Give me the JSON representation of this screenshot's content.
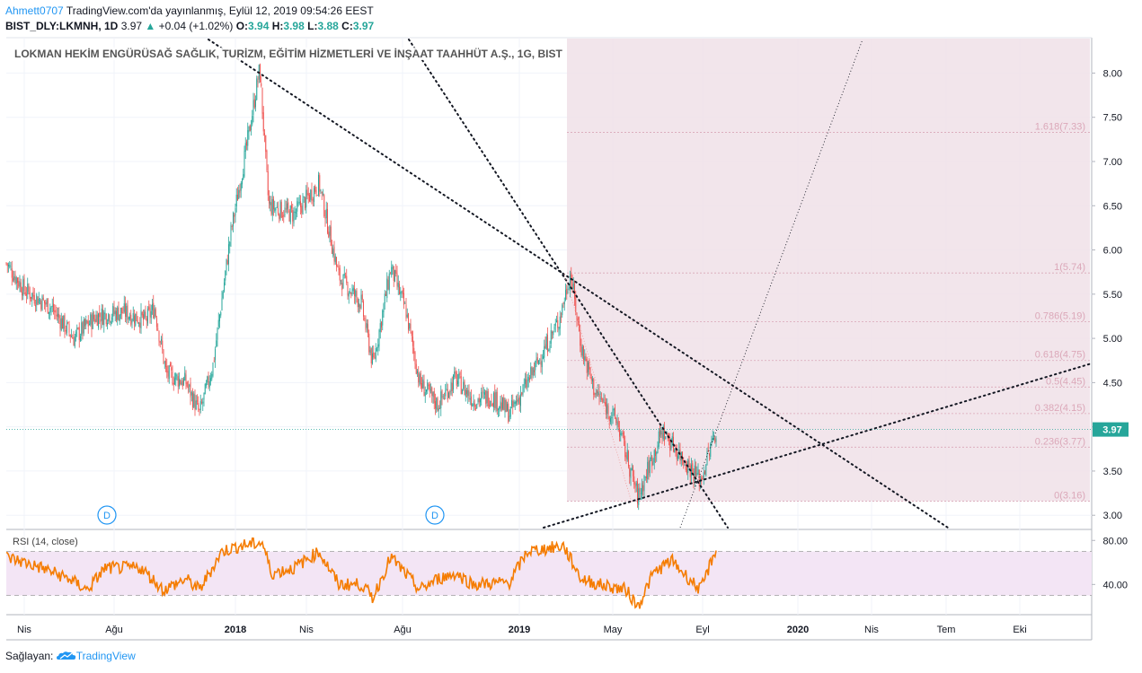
{
  "header": {
    "author": "Ahmett0707",
    "published": "TradingView.com'da yayınlanmış, Eylül 12, 2019 09:54:26 EEST",
    "symbol": "BIST_DLY:LKMNH, 1D",
    "last": "3.97",
    "change": "+0.04 (+1.02%)",
    "o_label": "O:",
    "o": "3.94",
    "h_label": "H:",
    "h": "3.98",
    "l_label": "L:",
    "l": "3.88",
    "c_label": "C:",
    "c": "3.97"
  },
  "title": "LOKMAN HEKİM ENGÜRÜSAĞ SAĞLIK, TURİZM, EĞİTİM HİZMETLERİ VE İNŞAAT TAAHHÜT A.Ş., 1G, BIST",
  "rsi_label": "RSI (14, close)",
  "footer": {
    "prefix": "Sağlayan:",
    "brand": "TradingView"
  },
  "colors": {
    "up": "#26a69a",
    "down": "#ef5350",
    "rsi": "#f57c00",
    "fib_zone": "#f0e0e8",
    "rsi_band": "#f3e5f5",
    "price_tag": "#26a69a"
  },
  "chart_data": [
    {
      "type": "candlestick",
      "ylim": [
        2.85,
        8.4
      ],
      "y_ticks": [
        "3.00",
        "3.50",
        "4.00",
        "4.50",
        "5.00",
        "5.50",
        "6.00",
        "6.50",
        "7.00",
        "7.50",
        "8.00"
      ],
      "x_ticks": [
        "Nis",
        "Ağu",
        "2018",
        "Nis",
        "Ağu",
        "2019",
        "May",
        "Eyl",
        "2020",
        "Nis",
        "Tem",
        "Eki"
      ],
      "last_price": 3.97,
      "last_price_label": "3.97",
      "dividend_markers": [
        "D",
        "D"
      ],
      "trend_keypoints": [
        {
          "x": 0,
          "y": 5.85
        },
        {
          "x": 20,
          "y": 5.55
        },
        {
          "x": 50,
          "y": 5.35
        },
        {
          "x": 75,
          "y": 5.0
        },
        {
          "x": 100,
          "y": 5.25
        },
        {
          "x": 130,
          "y": 5.3
        },
        {
          "x": 155,
          "y": 5.2
        },
        {
          "x": 165,
          "y": 5.35
        },
        {
          "x": 178,
          "y": 4.6
        },
        {
          "x": 200,
          "y": 4.5
        },
        {
          "x": 215,
          "y": 4.15
        },
        {
          "x": 230,
          "y": 4.7
        },
        {
          "x": 250,
          "y": 6.2
        },
        {
          "x": 268,
          "y": 7.2
        },
        {
          "x": 282,
          "y": 8.05
        },
        {
          "x": 292,
          "y": 6.5
        },
        {
          "x": 320,
          "y": 6.4
        },
        {
          "x": 348,
          "y": 6.75
        },
        {
          "x": 370,
          "y": 5.7
        },
        {
          "x": 395,
          "y": 5.4
        },
        {
          "x": 408,
          "y": 4.7
        },
        {
          "x": 428,
          "y": 5.8
        },
        {
          "x": 445,
          "y": 5.3
        },
        {
          "x": 460,
          "y": 4.5
        },
        {
          "x": 480,
          "y": 4.25
        },
        {
          "x": 500,
          "y": 4.55
        },
        {
          "x": 520,
          "y": 4.3
        },
        {
          "x": 540,
          "y": 4.35
        },
        {
          "x": 560,
          "y": 4.15
        },
        {
          "x": 580,
          "y": 4.5
        },
        {
          "x": 600,
          "y": 4.9
        },
        {
          "x": 615,
          "y": 5.2
        },
        {
          "x": 628,
          "y": 5.74
        },
        {
          "x": 640,
          "y": 4.9
        },
        {
          "x": 655,
          "y": 4.4
        },
        {
          "x": 680,
          "y": 4.05
        },
        {
          "x": 703,
          "y": 3.2
        },
        {
          "x": 715,
          "y": 3.55
        },
        {
          "x": 730,
          "y": 3.95
        },
        {
          "x": 745,
          "y": 3.75
        },
        {
          "x": 760,
          "y": 3.55
        },
        {
          "x": 773,
          "y": 3.4
        },
        {
          "x": 790,
          "y": 3.97
        }
      ],
      "fibonacci": [
        {
          "level": "1.618",
          "value": 7.33,
          "label": "1.618(7.33)"
        },
        {
          "level": "1",
          "value": 5.74,
          "label": "1(5.74)"
        },
        {
          "level": "0.786",
          "value": 5.19,
          "label": "0.786(5.19)"
        },
        {
          "level": "0.618",
          "value": 4.75,
          "label": "0.618(4.75)"
        },
        {
          "level": "0.5",
          "value": 4.45,
          "label": "0.5(4.45)"
        },
        {
          "level": "0.382",
          "value": 4.15,
          "label": "0.382(4.15)"
        },
        {
          "level": "0.236",
          "value": 3.77,
          "label": "0.236(3.77)"
        },
        {
          "level": "0",
          "value": 3.16,
          "label": "0(3.16)"
        }
      ]
    },
    {
      "type": "line",
      "name": "RSI (14, close)",
      "ylim": [
        15,
        90
      ],
      "y_ticks": [
        "40.00",
        "80.00"
      ],
      "upper_band": 70,
      "lower_band": 30,
      "rsi_keypoints": [
        {
          "x": 0,
          "y": 65
        },
        {
          "x": 40,
          "y": 55
        },
        {
          "x": 70,
          "y": 45
        },
        {
          "x": 90,
          "y": 35
        },
        {
          "x": 110,
          "y": 55
        },
        {
          "x": 150,
          "y": 55
        },
        {
          "x": 175,
          "y": 35
        },
        {
          "x": 200,
          "y": 45
        },
        {
          "x": 215,
          "y": 35
        },
        {
          "x": 240,
          "y": 70
        },
        {
          "x": 260,
          "y": 75
        },
        {
          "x": 285,
          "y": 78
        },
        {
          "x": 295,
          "y": 50
        },
        {
          "x": 320,
          "y": 55
        },
        {
          "x": 348,
          "y": 70
        },
        {
          "x": 370,
          "y": 40
        },
        {
          "x": 395,
          "y": 40
        },
        {
          "x": 408,
          "y": 28
        },
        {
          "x": 428,
          "y": 65
        },
        {
          "x": 460,
          "y": 35
        },
        {
          "x": 480,
          "y": 45
        },
        {
          "x": 500,
          "y": 50
        },
        {
          "x": 520,
          "y": 40
        },
        {
          "x": 560,
          "y": 42
        },
        {
          "x": 580,
          "y": 70
        },
        {
          "x": 620,
          "y": 75
        },
        {
          "x": 640,
          "y": 45
        },
        {
          "x": 660,
          "y": 40
        },
        {
          "x": 690,
          "y": 35
        },
        {
          "x": 703,
          "y": 20
        },
        {
          "x": 720,
          "y": 50
        },
        {
          "x": 740,
          "y": 62
        },
        {
          "x": 760,
          "y": 45
        },
        {
          "x": 773,
          "y": 35
        },
        {
          "x": 790,
          "y": 73
        }
      ]
    }
  ]
}
